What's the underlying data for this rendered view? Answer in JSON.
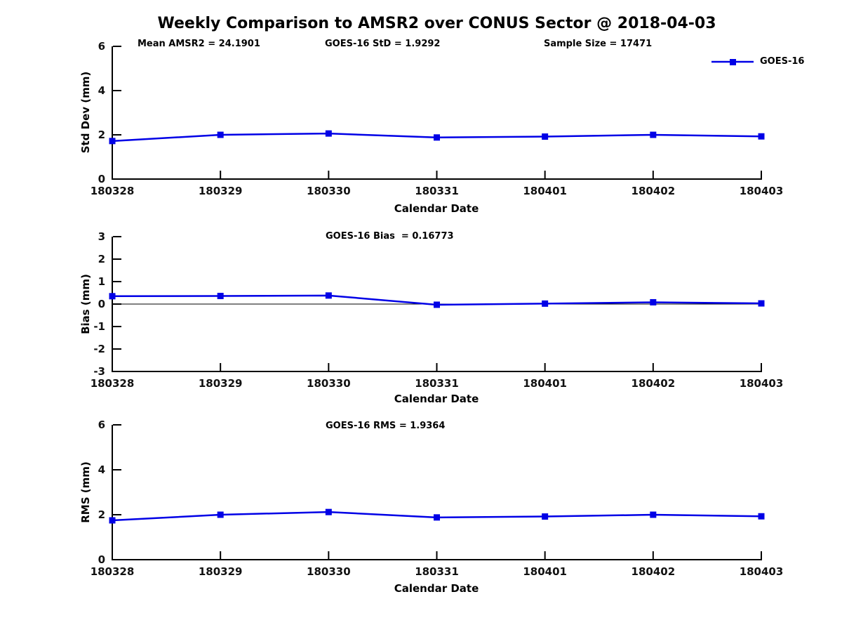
{
  "title": "Weekly Comparison to AMSR2 over CONUS Sector @ 2018-04-03",
  "colors": {
    "line": "#0000E6",
    "axis": "#000000",
    "tick_text": "#111111",
    "zero_line": "#000000"
  },
  "legend": {
    "label": "GOES-16"
  },
  "chart_data": [
    {
      "type": "line",
      "name": "std-dev-panel",
      "title": "",
      "annotations": [
        "Mean AMSR2 = 24.1901",
        "GOES-16 StD = 1.9292",
        "Sample Size = 17471"
      ],
      "xlabel": "Calendar Date",
      "ylabel": "Std Dev (mm)",
      "categories": [
        "180328",
        "180329",
        "180330",
        "180331",
        "180401",
        "180402",
        "180403"
      ],
      "series": [
        {
          "name": "GOES-16",
          "values": [
            1.72,
            2.0,
            2.06,
            1.88,
            1.92,
            2.0,
            1.93
          ]
        }
      ],
      "ylim": [
        0,
        6
      ],
      "yticks": [
        0,
        2,
        4,
        6
      ],
      "zero_line": false,
      "grid": false,
      "legend_position": "upper-right-outside"
    },
    {
      "type": "line",
      "name": "bias-panel",
      "title": "",
      "annotations": [
        "GOES-16 Bias  = 0.16773"
      ],
      "xlabel": "Calendar Date",
      "ylabel": "Bias (mm)",
      "categories": [
        "180328",
        "180329",
        "180330",
        "180331",
        "180401",
        "180402",
        "180403"
      ],
      "series": [
        {
          "name": "GOES-16",
          "values": [
            0.35,
            0.36,
            0.38,
            -0.03,
            0.02,
            0.08,
            0.03
          ]
        }
      ],
      "ylim": [
        -3,
        3
      ],
      "yticks": [
        -3,
        -2,
        -1,
        0,
        1,
        2,
        3
      ],
      "zero_line": true,
      "grid": false,
      "legend_position": "none"
    },
    {
      "type": "line",
      "name": "rms-panel",
      "title": "",
      "annotations": [
        "GOES-16 RMS = 1.9364"
      ],
      "xlabel": "Calendar Date",
      "ylabel": "RMS (mm)",
      "categories": [
        "180328",
        "180329",
        "180330",
        "180331",
        "180401",
        "180402",
        "180403"
      ],
      "series": [
        {
          "name": "GOES-16",
          "values": [
            1.75,
            2.0,
            2.12,
            1.88,
            1.92,
            2.0,
            1.93
          ]
        }
      ],
      "ylim": [
        0,
        6
      ],
      "yticks": [
        0,
        2,
        4,
        6
      ],
      "zero_line": false,
      "grid": false,
      "legend_position": "none"
    }
  ]
}
